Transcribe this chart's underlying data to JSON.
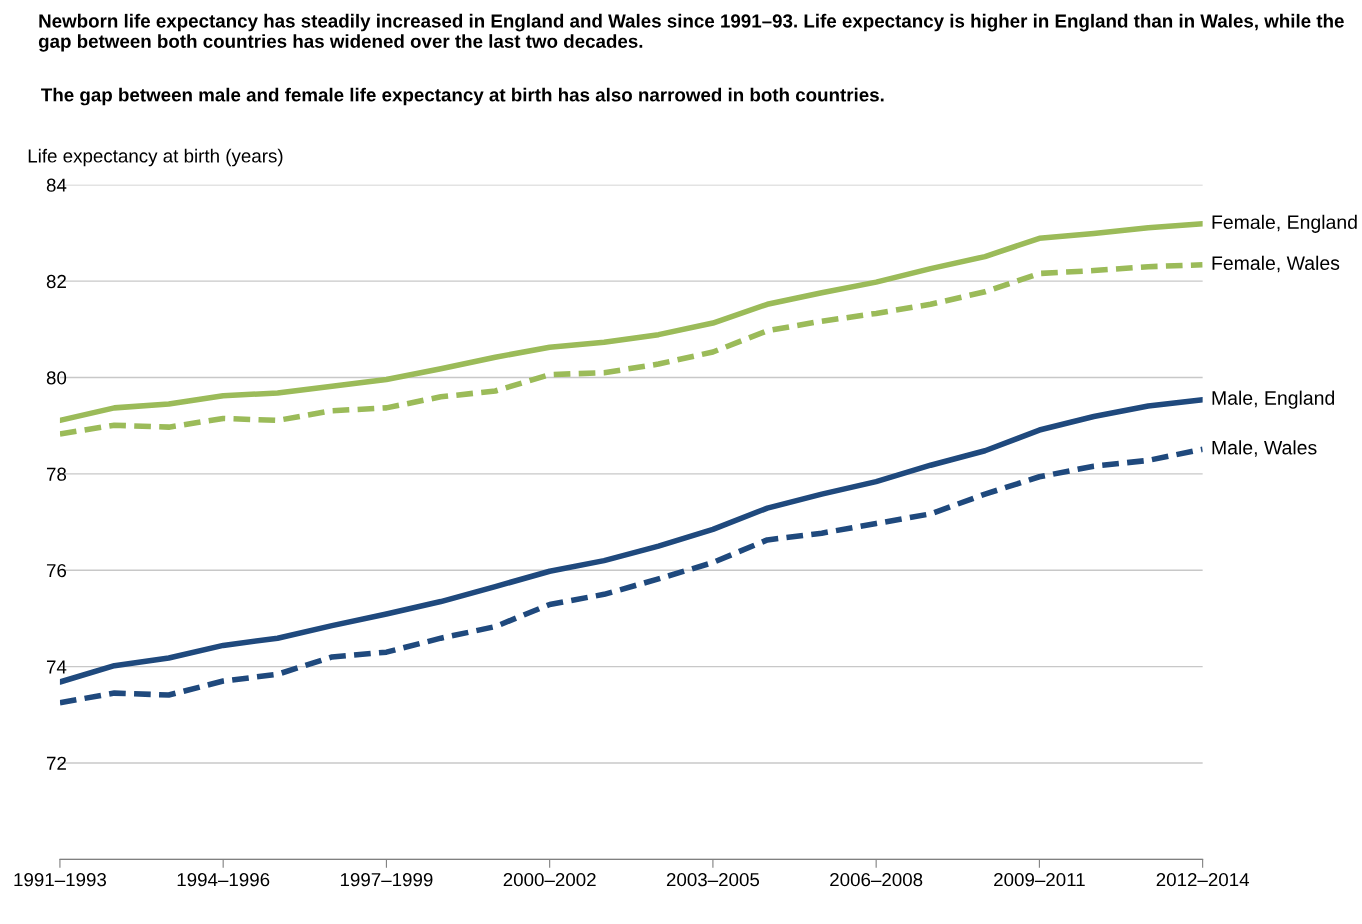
{
  "chart_data": {
    "type": "line",
    "title": "Newborn life expectancy has steadily increased in England and Wales since 1991–93. Life expectancy is higher in England than in Wales, while the gap between both countries has widened over the last two decades.",
    "subtitle": "The gap between male and female life expectancy at birth has also narrowed in both countries.",
    "ylabel": "Life expectancy at birth (years)",
    "categories": [
      "1991–1993",
      null,
      null,
      "1994–1996",
      null,
      null,
      "1997–1999",
      null,
      null,
      "2000–2002",
      null,
      null,
      "2003–2005",
      null,
      null,
      "2006–2008",
      null,
      null,
      "2009–2011",
      null,
      null,
      "2012–2014"
    ],
    "series": [
      {
        "name": "Female, England",
        "color": "#9bbb59",
        "line_style": "solid",
        "values": [
          79.11,
          79.37,
          79.45,
          79.62,
          79.68,
          79.82,
          79.96,
          80.18,
          80.42,
          80.63,
          80.73,
          80.89,
          81.13,
          81.52,
          81.76,
          81.98,
          82.26,
          82.51,
          82.89,
          82.99,
          83.11,
          83.19
        ]
      },
      {
        "name": "Female, Wales",
        "color": "#9bbb59",
        "line_style": "dashed",
        "values": [
          78.83,
          79.01,
          78.97,
          79.15,
          79.11,
          79.31,
          79.37,
          79.6,
          79.72,
          80.06,
          80.1,
          80.28,
          80.53,
          80.97,
          81.17,
          81.33,
          81.52,
          81.78,
          82.16,
          82.22,
          82.3,
          82.34
        ]
      },
      {
        "name": "Male, England",
        "color": "#1f497d",
        "line_style": "solid",
        "values": [
          73.68,
          74.02,
          74.18,
          74.44,
          74.59,
          74.85,
          75.09,
          75.35,
          75.66,
          75.98,
          76.2,
          76.5,
          76.85,
          77.29,
          77.58,
          77.84,
          78.18,
          78.48,
          78.91,
          79.19,
          79.41,
          79.54
        ]
      },
      {
        "name": "Male, Wales",
        "color": "#1f497d",
        "line_style": "dashed",
        "values": [
          73.25,
          73.45,
          73.41,
          73.7,
          73.84,
          74.2,
          74.3,
          74.59,
          74.83,
          75.29,
          75.5,
          75.82,
          76.16,
          76.63,
          76.77,
          76.97,
          77.17,
          77.58,
          77.94,
          78.16,
          78.28,
          78.51
        ]
      }
    ],
    "ylim": [
      70,
      84
    ],
    "yticks": [
      {
        "value": 70,
        "label": null
      },
      72,
      74,
      76,
      78,
      80,
      82,
      84
    ],
    "grid": "y",
    "legend": false,
    "marker": "none"
  }
}
